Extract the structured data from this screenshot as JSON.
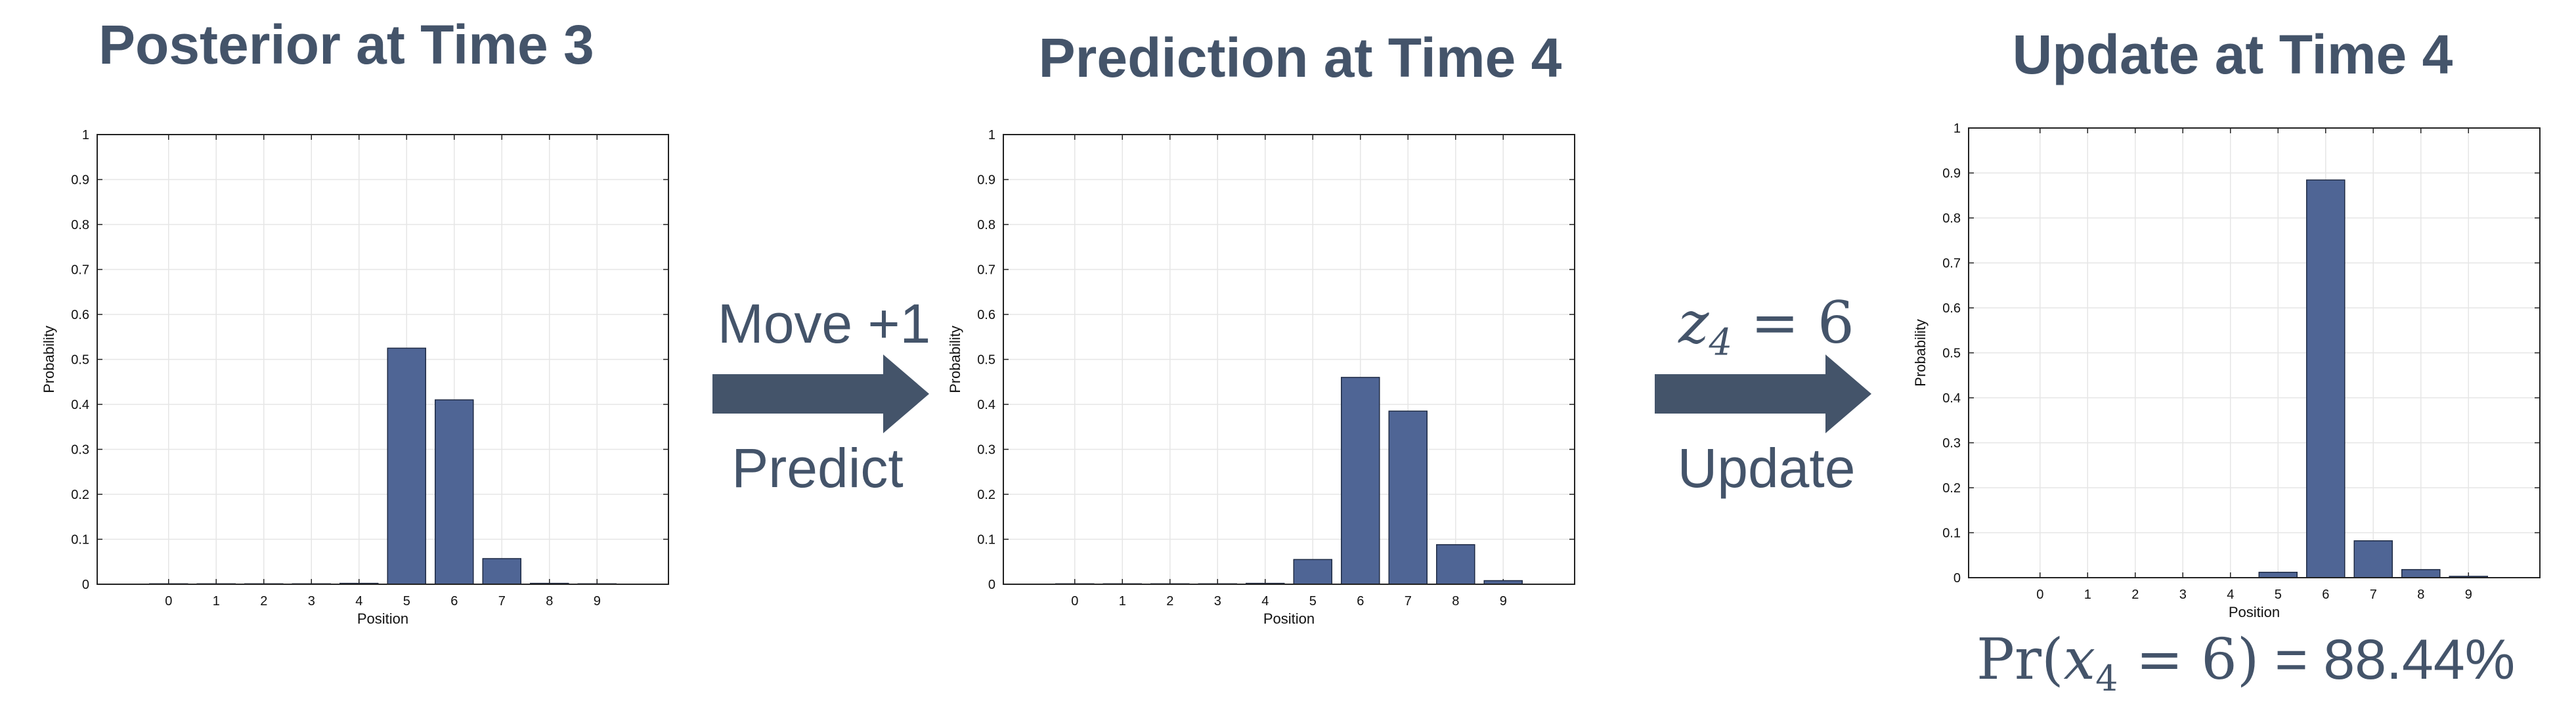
{
  "colors": {
    "bar": "#4f6595",
    "bar_stroke": "#1e2a44",
    "text": "#44546a",
    "arrow": "#44546a",
    "grid": "#e6e6e6"
  },
  "step1": {
    "top": "Move +1",
    "bottom": "Predict"
  },
  "step2": {
    "top_var": "z",
    "top_sub": "4",
    "top_rest": " = 6",
    "bottom": "Update"
  },
  "result": {
    "pr": "Pr",
    "open": "(",
    "var": "x",
    "sub": "4",
    "rest": " = 6)",
    "value": " = 88.44%"
  },
  "chart_data": [
    {
      "type": "bar",
      "title": "Posterior at Time 3",
      "xlabel": "Position",
      "ylabel": "Probability",
      "categories": [
        "0",
        "1",
        "2",
        "3",
        "4",
        "5",
        "6",
        "7",
        "8",
        "9"
      ],
      "values": [
        0.001,
        0.001,
        0.001,
        0.001,
        0.002,
        0.525,
        0.41,
        0.057,
        0.002,
        0.001
      ],
      "ylim": [
        0,
        1
      ],
      "yticks": [
        "0",
        "0.1",
        "0.2",
        "0.3",
        "0.4",
        "0.5",
        "0.6",
        "0.7",
        "0.8",
        "0.9",
        "1"
      ],
      "grid": true
    },
    {
      "type": "bar",
      "title": "Prediction at Time 4",
      "xlabel": "Position",
      "ylabel": "Probability",
      "categories": [
        "0",
        "1",
        "2",
        "3",
        "4",
        "5",
        "6",
        "7",
        "8",
        "9"
      ],
      "values": [
        0.001,
        0.001,
        0.001,
        0.001,
        0.002,
        0.055,
        0.46,
        0.385,
        0.088,
        0.008
      ],
      "ylim": [
        0,
        1
      ],
      "yticks": [
        "0",
        "0.1",
        "0.2",
        "0.3",
        "0.4",
        "0.5",
        "0.6",
        "0.7",
        "0.8",
        "0.9",
        "1"
      ],
      "grid": true
    },
    {
      "type": "bar",
      "title": "Update at Time 4",
      "xlabel": "Position",
      "ylabel": "Probability",
      "categories": [
        "0",
        "1",
        "2",
        "3",
        "4",
        "5",
        "6",
        "7",
        "8",
        "9"
      ],
      "values": [
        0.0,
        0.0,
        0.0,
        0.0,
        0.0,
        0.012,
        0.8844,
        0.082,
        0.018,
        0.003
      ],
      "ylim": [
        0,
        1
      ],
      "yticks": [
        "0",
        "0.1",
        "0.2",
        "0.3",
        "0.4",
        "0.5",
        "0.6",
        "0.7",
        "0.8",
        "0.9",
        "1"
      ],
      "grid": true
    }
  ]
}
